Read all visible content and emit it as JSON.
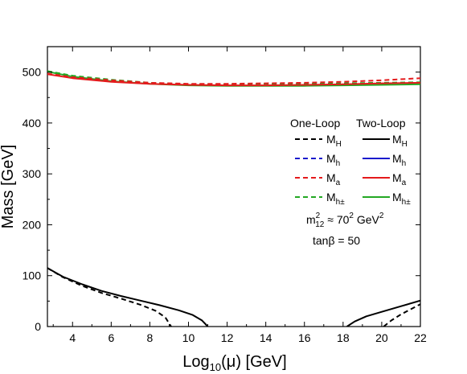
{
  "chart_data": {
    "type": "line",
    "xlabel": "Log₁₀(μ) [GeV]",
    "ylabel": "Mass [GeV]",
    "xlim": [
      2.7,
      22
    ],
    "ylim": [
      0,
      550
    ],
    "xticks": [
      4,
      6,
      8,
      10,
      12,
      14,
      16,
      18,
      20,
      22
    ],
    "yticks": [
      0,
      100,
      200,
      300,
      400,
      500
    ],
    "grid": false,
    "legend": {
      "placement": "right",
      "col_headers": [
        "One-Loop",
        "Two-Loop"
      ],
      "entries": [
        {
          "label": "M",
          "sub": "H",
          "color": "#000000"
        },
        {
          "label": "M",
          "sub": "h",
          "color": "#1a1acc"
        },
        {
          "label": "M",
          "sub": "a",
          "color": "#e41a1c"
        },
        {
          "label": "M",
          "sub": "h±",
          "color": "#23a823"
        }
      ]
    },
    "annotations": {
      "m12_prefix": "m",
      "m12_sup": "2",
      "m12_sub": "12",
      "m12_mid": " ≈ 70",
      "m12_sup2": "2",
      "m12_unit": " GeV",
      "m12_sup3": "2",
      "tanb": "tanβ = 50"
    },
    "series": [
      {
        "name": "M_h± One-Loop",
        "color": "#23a823",
        "dash": true,
        "x": [
          2.7,
          4,
          6,
          8,
          10,
          12,
          14,
          16,
          18,
          20,
          22
        ],
        "y": [
          502,
          493,
          485,
          479,
          476,
          476,
          477,
          477,
          478,
          479,
          480
        ]
      },
      {
        "name": "M_h± Two-Loop",
        "color": "#23a823",
        "dash": false,
        "x": [
          2.7,
          4,
          6,
          8,
          10,
          12,
          14,
          16,
          18,
          20,
          22
        ],
        "y": [
          501,
          491,
          482,
          477,
          474,
          473,
          473,
          473,
          474,
          475,
          476
        ]
      },
      {
        "name": "M_a One-Loop",
        "color": "#e41a1c",
        "dash": true,
        "x": [
          2.7,
          4,
          6,
          8,
          10,
          12,
          14,
          16,
          18,
          20,
          22
        ],
        "y": [
          497,
          490,
          484,
          479,
          477,
          477,
          478,
          479,
          481,
          484,
          488
        ]
      },
      {
        "name": "M_a Two-Loop",
        "color": "#e41a1c",
        "dash": false,
        "x": [
          2.7,
          4,
          6,
          8,
          10,
          12,
          14,
          16,
          18,
          20,
          22
        ],
        "y": [
          496,
          488,
          481,
          477,
          475,
          474,
          474,
          475,
          476,
          478,
          479
        ]
      },
      {
        "name": "M_H One-Loop",
        "color": "#000000",
        "dash": true,
        "x": [
          2.7,
          3.5,
          4.5,
          5.5,
          6.5,
          7.5,
          8.3,
          8.8,
          9.1
        ],
        "y": [
          115,
          97,
          80,
          66,
          55,
          43,
          31,
          18,
          0
        ]
      },
      {
        "name": "M_H Two-Loop",
        "color": "#000000",
        "dash": false,
        "x": [
          2.7,
          3.5,
          4.5,
          5.5,
          6.5,
          7.5,
          8.5,
          9.5,
          10.2,
          10.7,
          11.0
        ],
        "y": [
          115,
          98,
          83,
          70,
          60,
          51,
          42,
          32,
          23,
          12,
          0
        ]
      },
      {
        "name": "M_H Two-Loop (high)",
        "color": "#000000",
        "dash": false,
        "x": [
          18.2,
          18.6,
          19.2,
          20,
          21,
          22
        ],
        "y": [
          0,
          10,
          20,
          29,
          40,
          51
        ]
      },
      {
        "name": "M_H One-Loop (high)",
        "color": "#000000",
        "dash": true,
        "x": [
          20.1,
          20.5,
          21,
          21.5,
          22
        ],
        "y": [
          0,
          12,
          24,
          34,
          44
        ]
      }
    ]
  }
}
